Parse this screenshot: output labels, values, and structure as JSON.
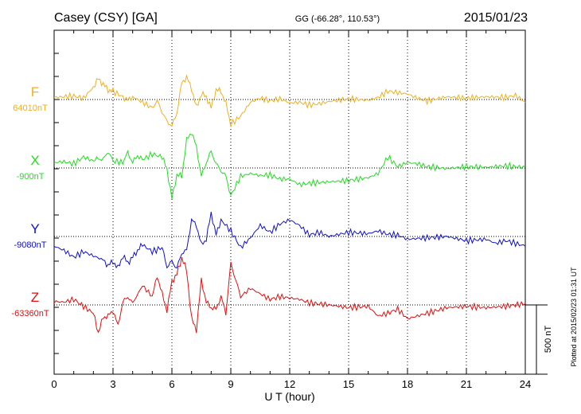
{
  "header": {
    "station": "Casey (CSY)  [GA]",
    "coords": "GG (-66.28°, 110.53°)",
    "date": "2015/01/23"
  },
  "side_note": "Plotted at 2015/02/23 01:31  UT",
  "scale_bar": {
    "label": "500 nT",
    "value_nT": 500
  },
  "chart_data": {
    "type": "line",
    "title": "Casey (CSY)  [GA]",
    "xlabel": "U T (hour)",
    "ylabel": "",
    "xlim": [
      0,
      24
    ],
    "xticks": [
      0,
      3,
      6,
      9,
      12,
      15,
      18,
      21,
      24
    ],
    "grid": true,
    "series": [
      {
        "name": "F",
        "baseline_label": "64010nT",
        "color": "#f0b020",
        "x": [
          0,
          0.5,
          1,
          1.5,
          2,
          2.25,
          2.5,
          2.75,
          3,
          3.5,
          3.75,
          4,
          4.5,
          5,
          5.25,
          5.5,
          5.75,
          6,
          6.25,
          6.5,
          6.75,
          7,
          7.25,
          7.5,
          7.75,
          8,
          8.25,
          8.5,
          8.75,
          9,
          9.5,
          10,
          10.5,
          11,
          11.5,
          12,
          12.5,
          13,
          13.5,
          14,
          15,
          16,
          16.5,
          17,
          17.5,
          18,
          18.5,
          19,
          20,
          21,
          22,
          23,
          23.5,
          24
        ],
        "values": [
          15,
          20,
          25,
          10,
          90,
          150,
          110,
          70,
          60,
          20,
          -5,
          20,
          -20,
          -60,
          -10,
          -90,
          -160,
          -190,
          -100,
          120,
          160,
          80,
          -60,
          40,
          20,
          -60,
          70,
          60,
          -30,
          -180,
          -120,
          -20,
          10,
          -10,
          5,
          -25,
          -20,
          -40,
          -30,
          -15,
          5,
          -5,
          15,
          60,
          50,
          40,
          10,
          -10,
          20,
          10,
          20,
          15,
          30,
          -20
        ]
      },
      {
        "name": "X",
        "baseline_label": "-900nT",
        "color": "#22dd22",
        "x": [
          0,
          0.5,
          1,
          1.5,
          2,
          2.25,
          2.5,
          2.75,
          3,
          3.5,
          3.75,
          4,
          4.25,
          4.5,
          5,
          5.5,
          5.75,
          6,
          6.25,
          6.5,
          6.75,
          7,
          7.25,
          7.5,
          7.75,
          8,
          8.25,
          8.5,
          8.75,
          9,
          9.5,
          10,
          10.5,
          11,
          11.5,
          12,
          12.5,
          13,
          14,
          15,
          16,
          16.5,
          17,
          17.5,
          18,
          18.5,
          19,
          20,
          21,
          22,
          23,
          24
        ],
        "values": [
          40,
          45,
          30,
          80,
          50,
          70,
          60,
          120,
          50,
          40,
          110,
          40,
          90,
          60,
          100,
          80,
          -10,
          -220,
          -50,
          -60,
          200,
          260,
          150,
          -60,
          40,
          120,
          30,
          -20,
          -60,
          -200,
          -60,
          -40,
          -55,
          -50,
          -80,
          -80,
          -120,
          -110,
          -100,
          -90,
          -70,
          -40,
          80,
          10,
          40,
          30,
          10,
          -5,
          10,
          5,
          15,
          5
        ]
      },
      {
        "name": "Y",
        "baseline_label": "-9080nT",
        "color": "#1010cc",
        "x": [
          0,
          0.5,
          1,
          1.5,
          2,
          2.5,
          2.75,
          3,
          3.25,
          3.5,
          3.75,
          4,
          4.25,
          4.5,
          5,
          5.5,
          5.75,
          6,
          6.25,
          6.5,
          6.75,
          7,
          7.25,
          7.5,
          7.75,
          8,
          8.25,
          8.5,
          9,
          9.5,
          10,
          10.5,
          11,
          11.5,
          12,
          12.5,
          13,
          13.5,
          14,
          15,
          16,
          16.5,
          17,
          17.5,
          18,
          19,
          20,
          21,
          22,
          22.5,
          23,
          24
        ],
        "values": [
          -70,
          -100,
          -150,
          -110,
          -140,
          -170,
          -210,
          -180,
          -230,
          -140,
          -190,
          -150,
          -100,
          -60,
          -110,
          -80,
          -220,
          -180,
          -230,
          -120,
          -100,
          120,
          80,
          -60,
          -20,
          170,
          10,
          120,
          40,
          -80,
          -10,
          80,
          30,
          90,
          120,
          80,
          10,
          30,
          0,
          30,
          20,
          40,
          15,
          10,
          -20,
          -10,
          0,
          -30,
          -20,
          -50,
          -30,
          -70
        ]
      },
      {
        "name": "Z",
        "baseline_label": "-63360nT",
        "color": "#e01010",
        "x": [
          0,
          0.5,
          1,
          1.5,
          2,
          2.25,
          2.5,
          2.75,
          3,
          3.25,
          3.5,
          3.75,
          4,
          4.5,
          5,
          5.25,
          5.5,
          5.75,
          6,
          6.25,
          6.5,
          6.75,
          7,
          7.25,
          7.5,
          7.75,
          8,
          8.25,
          8.5,
          8.75,
          9,
          9.25,
          9.5,
          10,
          10.5,
          11,
          11.5,
          12,
          12.5,
          13,
          14,
          15,
          16,
          16.5,
          17,
          17.5,
          18,
          19,
          20,
          21,
          22,
          23,
          24
        ],
        "values": [
          25,
          20,
          40,
          -10,
          -60,
          -200,
          -90,
          -80,
          -40,
          -150,
          20,
          60,
          10,
          140,
          60,
          210,
          80,
          -40,
          170,
          220,
          340,
          250,
          -100,
          -180,
          180,
          20,
          -20,
          -30,
          60,
          -60,
          300,
          180,
          60,
          120,
          80,
          40,
          60,
          50,
          40,
          15,
          0,
          -20,
          -10,
          -80,
          -60,
          -30,
          -100,
          -60,
          -20,
          -10,
          -20,
          -10,
          10
        ]
      }
    ]
  }
}
